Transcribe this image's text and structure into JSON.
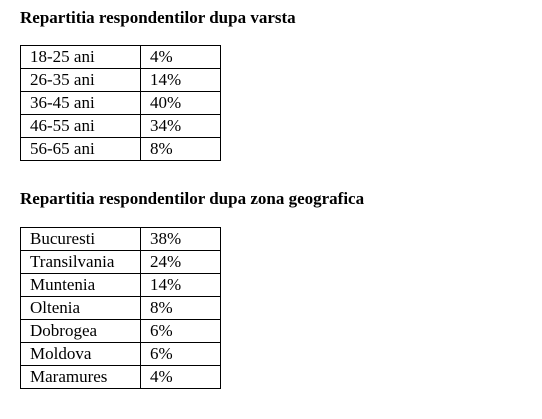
{
  "age_section": {
    "title": "Repartitia respondentilor dupa varsta",
    "rows": [
      {
        "label": "18-25 ani",
        "value": "4%"
      },
      {
        "label": "26-35 ani",
        "value": "14%"
      },
      {
        "label": "36-45 ani",
        "value": "40%"
      },
      {
        "label": "46-55 ani",
        "value": "34%"
      },
      {
        "label": "56-65 ani",
        "value": "8%"
      }
    ]
  },
  "region_section": {
    "title": "Repartitia respondentilor dupa zona geografica",
    "rows": [
      {
        "label": "Bucuresti",
        "value": "38%"
      },
      {
        "label": "Transilvania",
        "value": "24%"
      },
      {
        "label": "Muntenia",
        "value": "14%"
      },
      {
        "label": "Oltenia",
        "value": "8%"
      },
      {
        "label": "Dobrogea",
        "value": "6%"
      },
      {
        "label": "Moldova",
        "value": "6%"
      },
      {
        "label": "Maramures",
        "value": "4%"
      }
    ]
  }
}
